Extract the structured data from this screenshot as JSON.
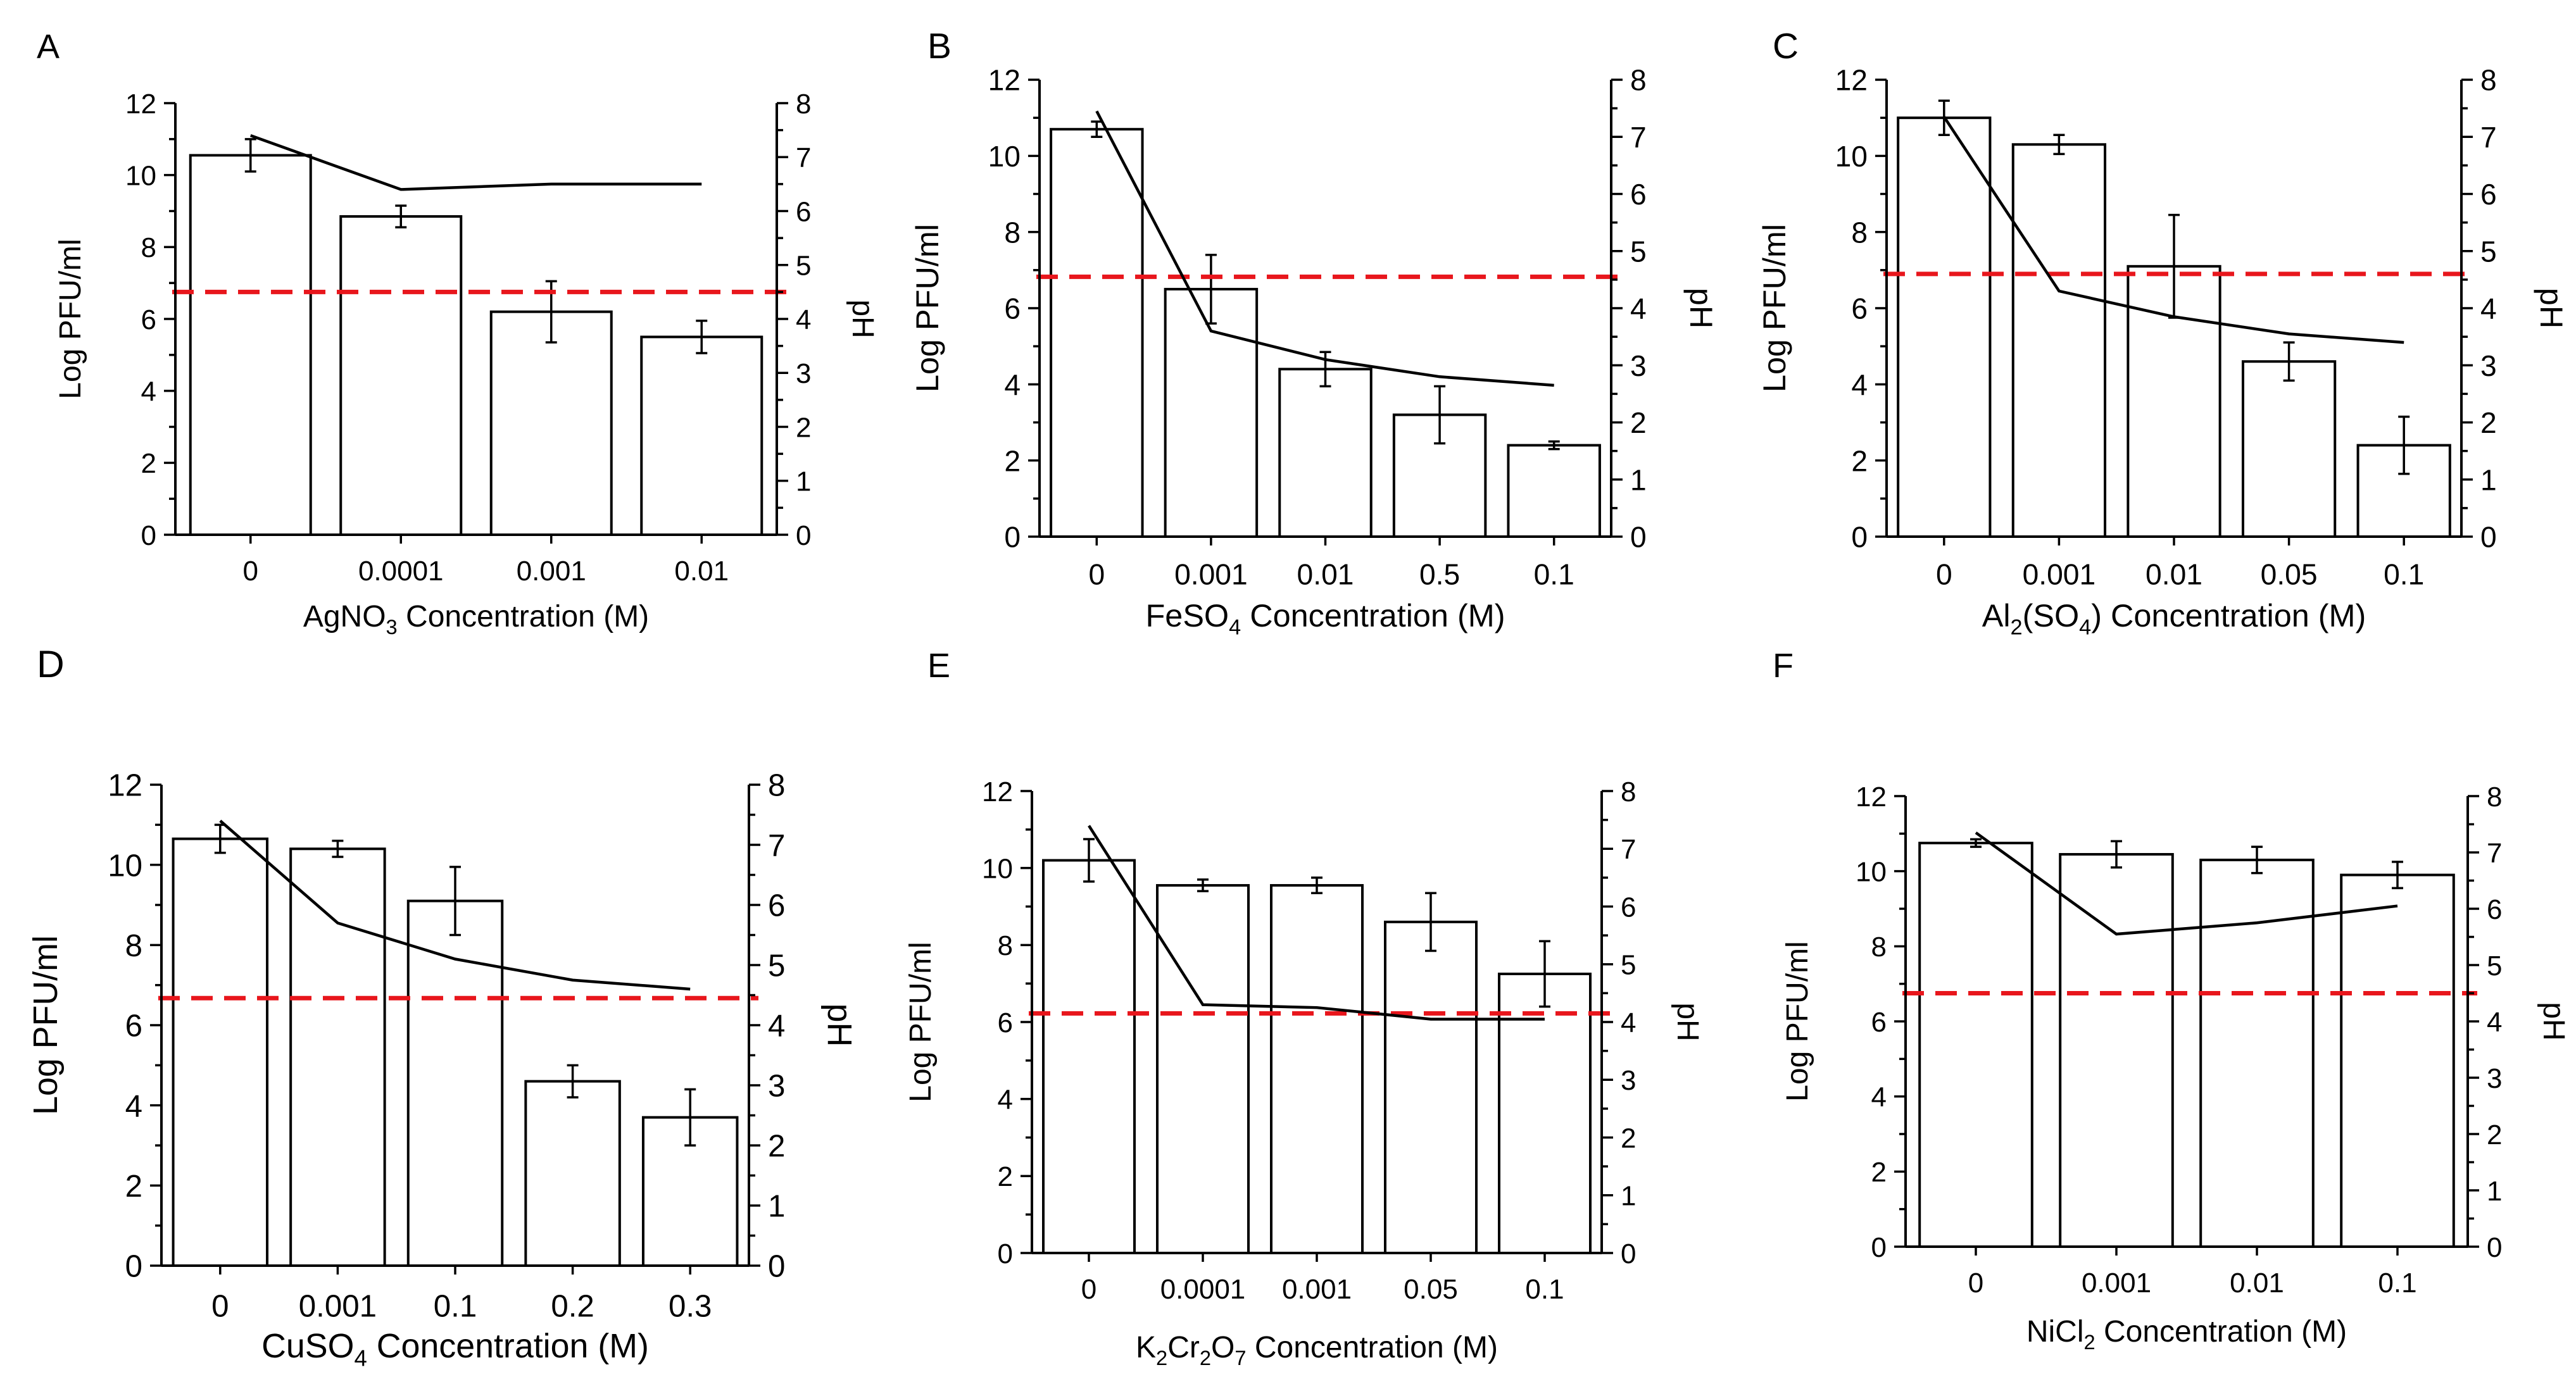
{
  "style": {
    "bar_fill": "#ffffff",
    "stroke": "#000000",
    "threshold_color": "#e8161c"
  },
  "chart_data": [
    {
      "type": "bar",
      "panel_label": "A",
      "categories": [
        "0",
        "0.0001",
        "0.001",
        "0.01"
      ],
      "values": [
        10.55,
        8.85,
        6.2,
        5.5
      ],
      "errors": [
        0.45,
        0.3,
        0.85,
        0.45
      ],
      "ylim": [
        0,
        12
      ],
      "yticks": [
        "0",
        "2",
        "4",
        "6",
        "8",
        "10",
        "12"
      ],
      "ylabel": "Log PFU/ml",
      "y2lim": [
        0,
        8
      ],
      "y2ticks": [
        "0",
        "1",
        "2",
        "3",
        "4",
        "5",
        "6",
        "7",
        "8"
      ],
      "y2label": "pH",
      "ph_line": [
        7.4,
        6.4,
        6.5,
        6.5
      ],
      "threshold_ph": 4.5,
      "xlabel": {
        "prefix": "AgNO",
        "sub": "3",
        "rest": " Concentration (M)"
      }
    },
    {
      "type": "bar",
      "panel_label": "B",
      "categories": [
        "0",
        "0.001",
        "0.01",
        "0.5",
        "0.1"
      ],
      "values": [
        10.7,
        6.5,
        4.4,
        3.2,
        2.4
      ],
      "errors": [
        0.2,
        0.9,
        0.45,
        0.75,
        0.1
      ],
      "ylim": [
        0,
        12
      ],
      "yticks": [
        "0",
        "2",
        "4",
        "6",
        "8",
        "10",
        "12"
      ],
      "ylabel": "Log PFU/ml",
      "y2lim": [
        0,
        8
      ],
      "y2ticks": [
        "0",
        "1",
        "2",
        "3",
        "4",
        "5",
        "6",
        "7",
        "8"
      ],
      "y2label": "pH",
      "ph_line": [
        7.45,
        3.6,
        3.1,
        2.8,
        2.65
      ],
      "threshold_ph": 4.55,
      "xlabel": {
        "prefix": "FeSO",
        "sub": "4",
        "rest": " Concentration (M)"
      }
    },
    {
      "type": "bar",
      "panel_label": "C",
      "categories": [
        "0",
        "0.001",
        "0.01",
        "0.05",
        "0.1"
      ],
      "values": [
        11.0,
        10.3,
        7.1,
        4.6,
        2.4
      ],
      "errors": [
        0.45,
        0.25,
        1.35,
        0.5,
        0.75
      ],
      "ylim": [
        0,
        12
      ],
      "yticks": [
        "0",
        "2",
        "4",
        "6",
        "8",
        "10",
        "12"
      ],
      "ylabel": "Log PFU/ml",
      "y2lim": [
        0,
        8
      ],
      "y2ticks": [
        "0",
        "1",
        "2",
        "3",
        "4",
        "5",
        "6",
        "7",
        "8"
      ],
      "y2label": "pH",
      "ph_line": [
        7.35,
        4.3,
        3.85,
        3.55,
        3.4
      ],
      "threshold_ph": 4.6,
      "xlabel": {
        "prefix": "Al",
        "sub": "2",
        "mid": "(SO",
        "sub2": "4",
        "rest": ") Concentration (M)"
      }
    },
    {
      "type": "bar",
      "panel_label": "D",
      "categories": [
        "0",
        "0.001",
        "0.1",
        "0.2",
        "0.3"
      ],
      "values": [
        10.65,
        10.4,
        9.1,
        4.6,
        3.7
      ],
      "errors": [
        0.35,
        0.2,
        0.85,
        0.4,
        0.7
      ],
      "ylim": [
        0,
        12
      ],
      "yticks": [
        "0",
        "2",
        "4",
        "6",
        "8",
        "10",
        "12"
      ],
      "ylabel": "Log PFU/ml",
      "y2lim": [
        0,
        8
      ],
      "y2ticks": [
        "0",
        "1",
        "2",
        "3",
        "4",
        "5",
        "6",
        "7",
        "8"
      ],
      "y2label": "pH",
      "ph_line": [
        7.4,
        5.7,
        5.1,
        4.75,
        4.6
      ],
      "threshold_ph": 4.45,
      "xlabel": {
        "prefix": "CuSO",
        "sub": "4",
        "rest": " Concentration (M)"
      }
    },
    {
      "type": "bar",
      "panel_label": "E",
      "categories": [
        "0",
        "0.0001",
        "0.001",
        "0.05",
        "0.1"
      ],
      "values": [
        10.2,
        9.55,
        9.55,
        8.6,
        7.25
      ],
      "errors": [
        0.55,
        0.15,
        0.2,
        0.75,
        0.85
      ],
      "ylim": [
        0,
        12
      ],
      "yticks": [
        "0",
        "2",
        "4",
        "6",
        "8",
        "10",
        "12"
      ],
      "ylabel": "Log PFU/ml",
      "y2lim": [
        0,
        8
      ],
      "y2ticks": [
        "0",
        "1",
        "2",
        "3",
        "4",
        "5",
        "6",
        "7",
        "8"
      ],
      "y2label": "pH",
      "ph_line": [
        7.4,
        4.3,
        4.25,
        4.05,
        4.05
      ],
      "threshold_ph": 4.15,
      "xlabel": {
        "prefix": "K",
        "sub": "2",
        "mid": "Cr",
        "sub2": "2",
        "mid2": "O",
        "sub3": "7",
        "rest": " Concentration (M)"
      }
    },
    {
      "type": "bar",
      "panel_label": "F",
      "categories": [
        "0",
        "0.001",
        "0.01",
        "0.1"
      ],
      "values": [
        10.75,
        10.45,
        10.3,
        9.9
      ],
      "errors": [
        0.1,
        0.35,
        0.35,
        0.35
      ],
      "ylim": [
        0,
        12
      ],
      "yticks": [
        "0",
        "2",
        "4",
        "6",
        "8",
        "10",
        "12"
      ],
      "ylabel": "Log PFU/ml",
      "y2lim": [
        0,
        8
      ],
      "y2ticks": [
        "0",
        "1",
        "2",
        "3",
        "4",
        "5",
        "6",
        "7",
        "8"
      ],
      "y2label": "pH",
      "ph_line": [
        7.35,
        5.55,
        5.75,
        6.05
      ],
      "threshold_ph": 4.5,
      "xlabel": {
        "prefix": "NiCl",
        "sub": "2",
        "rest": " Concentration (M)"
      }
    }
  ]
}
